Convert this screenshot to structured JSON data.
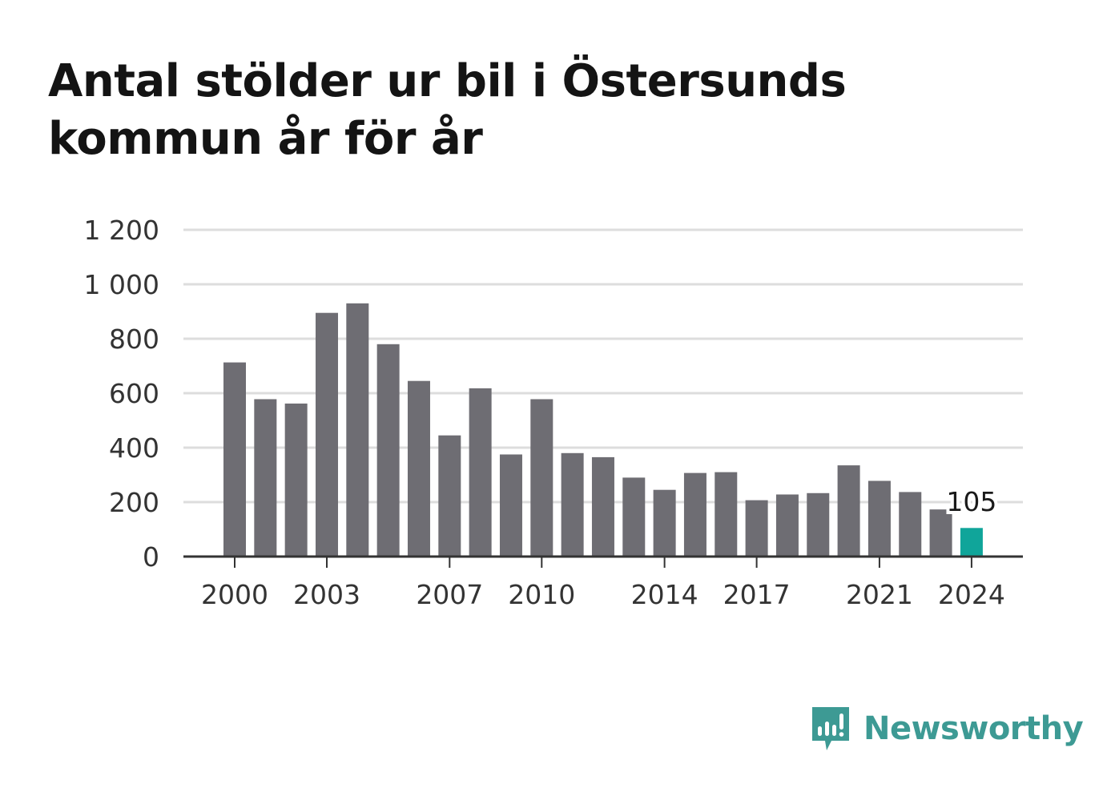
{
  "title": "Antal stölder ur bil i Östersunds kommun år för år",
  "brand": "Newsworthy",
  "colors": {
    "bar": "#6e6d73",
    "highlight": "#10a59a",
    "grid": "#dddddd",
    "axis": "#333333",
    "brand": "#3d9a94"
  },
  "chart_data": {
    "type": "bar",
    "title": "Antal stölder ur bil i Östersunds kommun år för år",
    "xlabel": "",
    "ylabel": "",
    "ylim": [
      0,
      1200
    ],
    "yticks": [
      0,
      200,
      400,
      600,
      800,
      1000,
      1200
    ],
    "ytick_labels": [
      "0",
      "200",
      "400",
      "600",
      "800",
      "1 000",
      "1 200"
    ],
    "xtick_labels": [
      "2000",
      "2003",
      "2007",
      "2010",
      "2014",
      "2017",
      "2021",
      "2024"
    ],
    "categories": [
      "2000",
      "2001",
      "2002",
      "2003",
      "2004",
      "2005",
      "2006",
      "2007",
      "2008",
      "2009",
      "2010",
      "2011",
      "2012",
      "2013",
      "2014",
      "2015",
      "2016",
      "2017",
      "2018",
      "2019",
      "2020",
      "2021",
      "2022",
      "2023",
      "2024"
    ],
    "values": [
      713,
      578,
      562,
      895,
      930,
      780,
      645,
      445,
      618,
      375,
      578,
      380,
      365,
      290,
      245,
      307,
      310,
      207,
      228,
      233,
      335,
      278,
      237,
      173,
      105
    ],
    "highlight_index": 24,
    "highlight_label": "105",
    "grid": true,
    "legend": "none"
  }
}
